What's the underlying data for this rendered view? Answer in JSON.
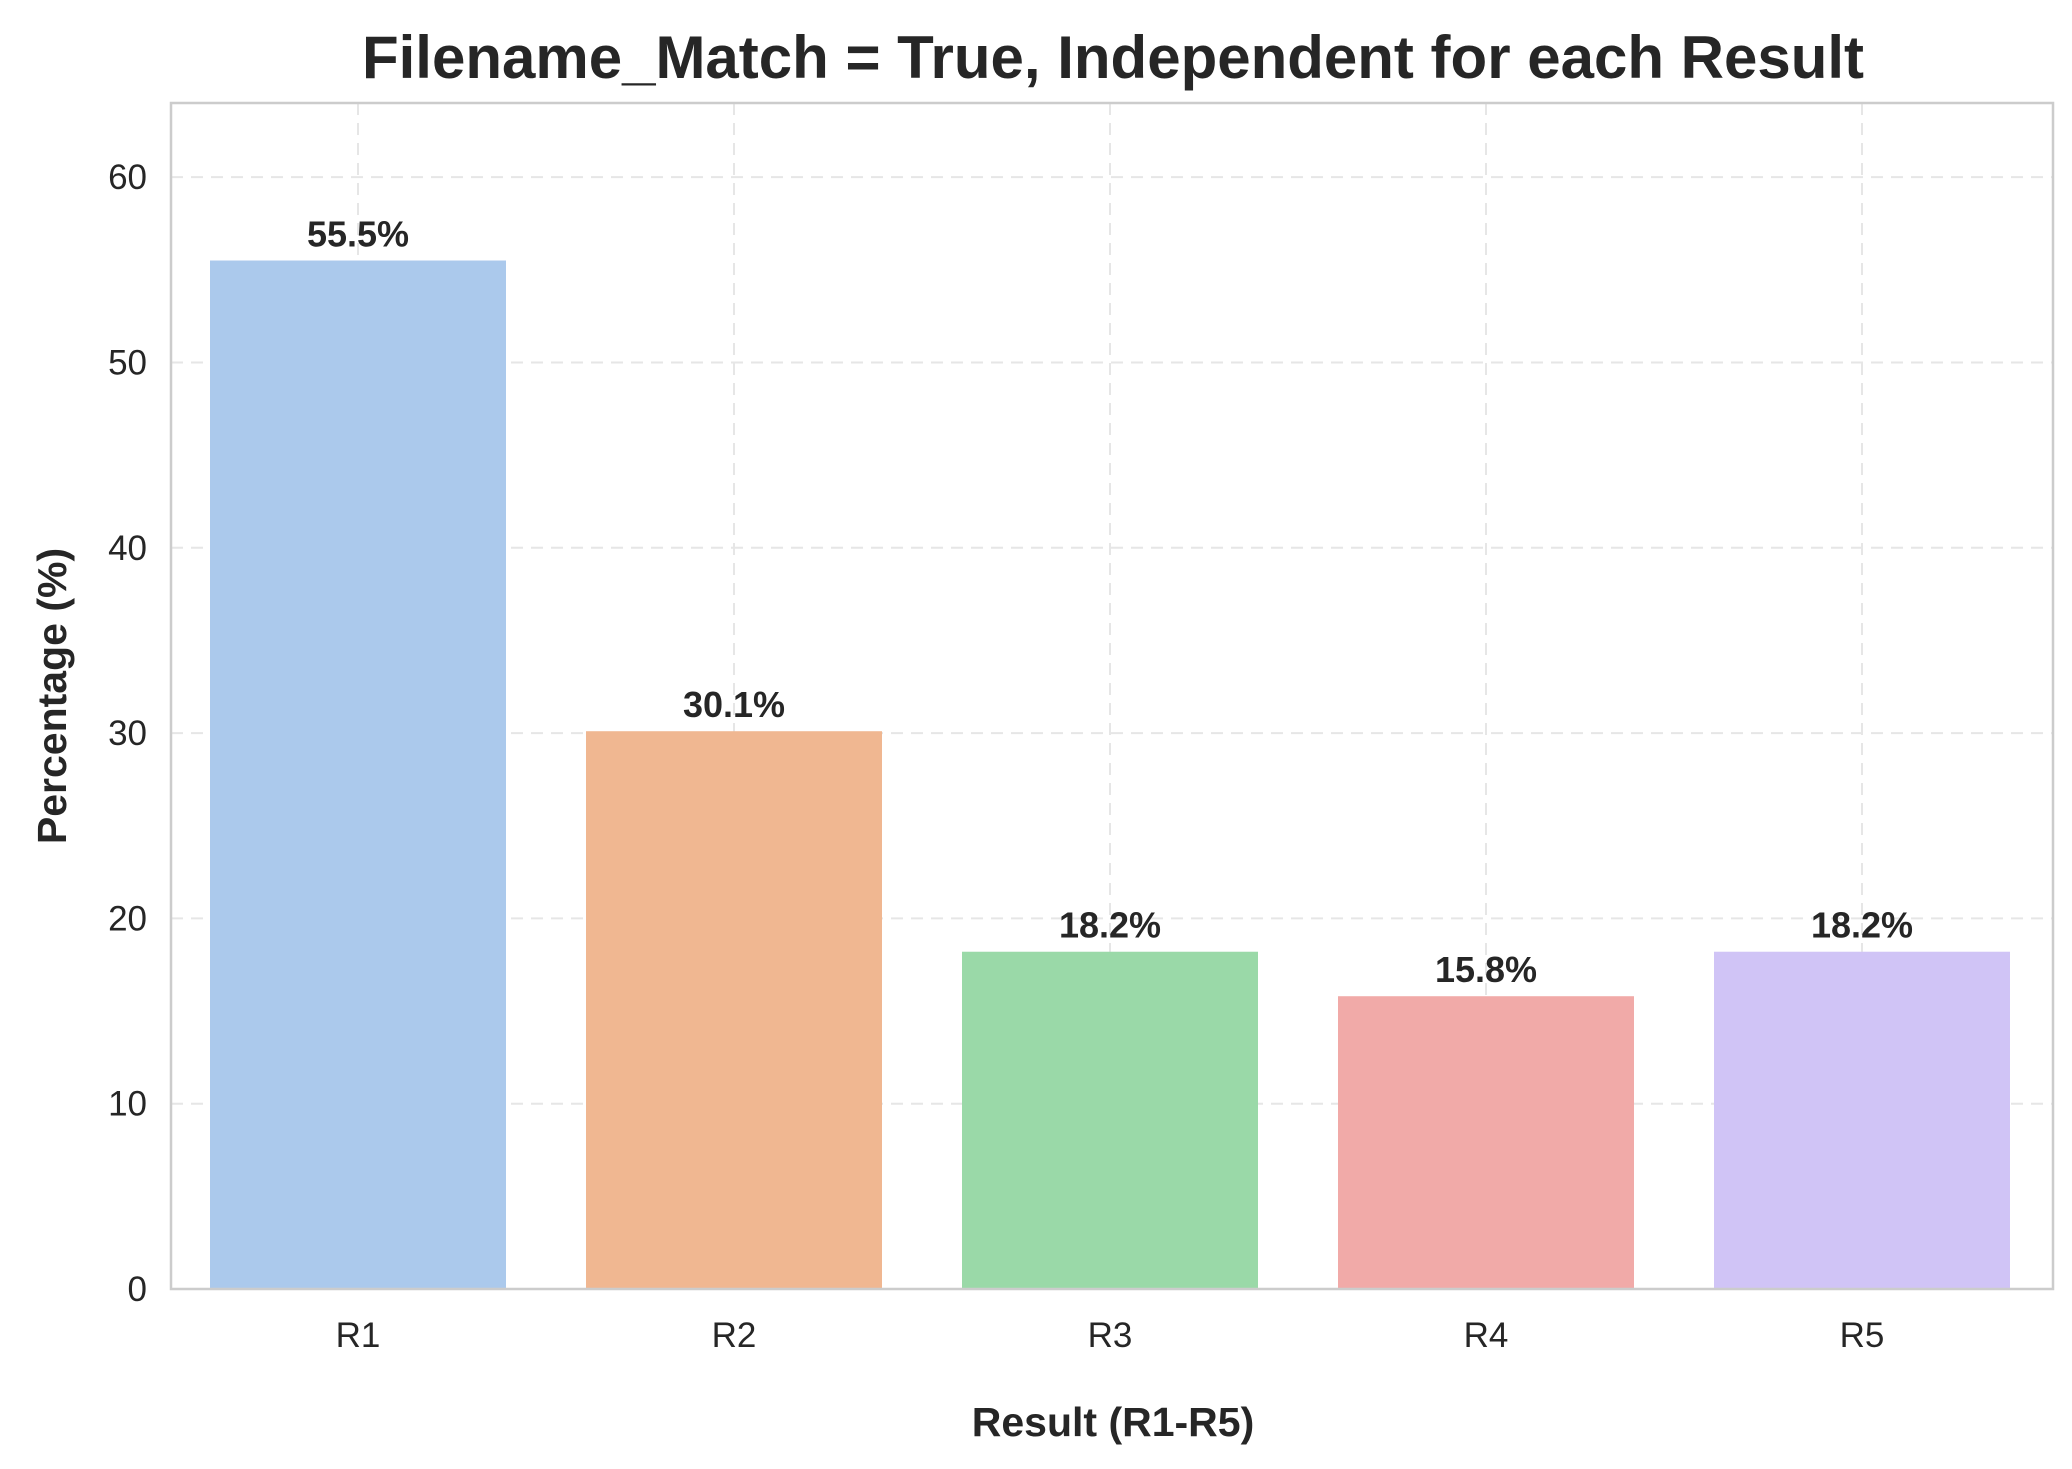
{
  "chart_data": {
    "type": "bar",
    "title": "Filename_Match = True, Independent for each Result",
    "xlabel": "Result (R1-R5)",
    "ylabel": "Percentage (%)",
    "categories": [
      "R1",
      "R2",
      "R3",
      "R4",
      "R5"
    ],
    "values": [
      55.5,
      30.1,
      18.2,
      15.8,
      18.2
    ],
    "data_labels": [
      "55.5%",
      "30.1%",
      "18.2%",
      "15.8%",
      "18.2%"
    ],
    "colors": [
      "#abc9ec",
      "#f0b791",
      "#9ad9a8",
      "#f1aaa8",
      "#d0c4f6"
    ],
    "ylim": [
      0,
      64
    ],
    "yticks": [
      0,
      10,
      20,
      30,
      40,
      50,
      60
    ],
    "grid": true,
    "legend": false
  }
}
